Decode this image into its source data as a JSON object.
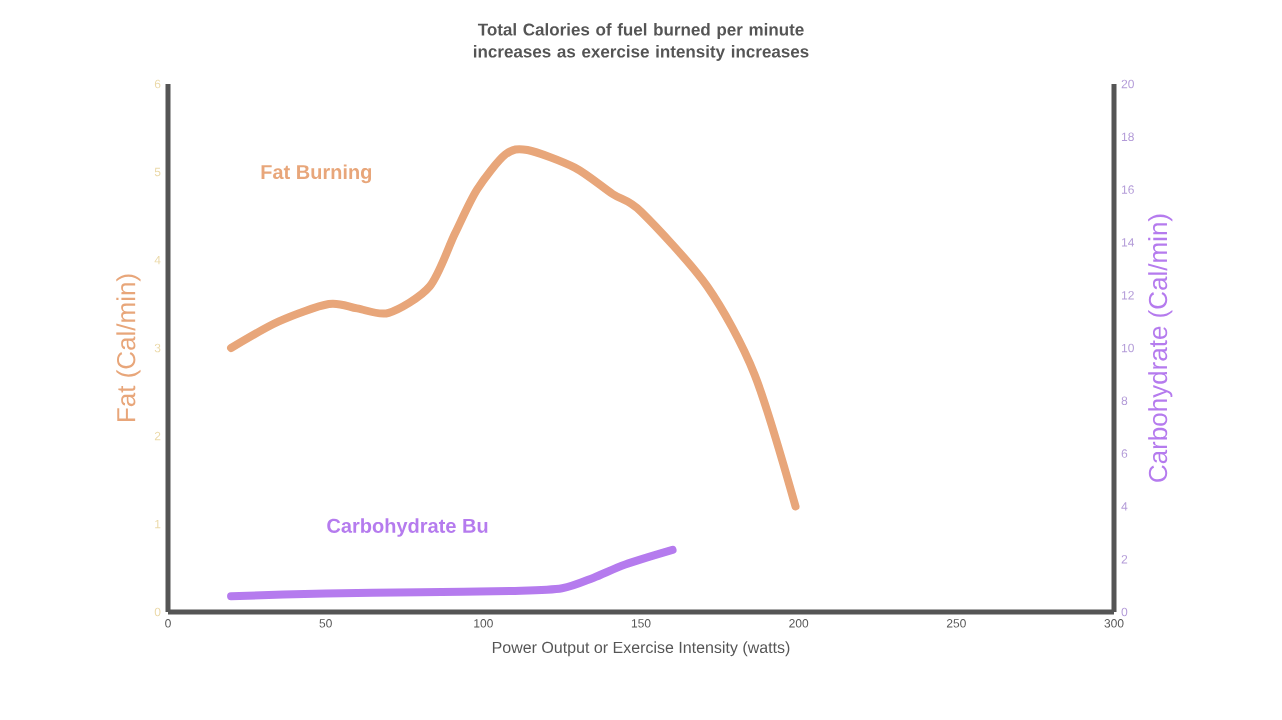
{
  "chart_data": {
    "type": "line",
    "title": "Total Calories of fuel burned per minute increases as exercise intensity increases",
    "xlabel": "Power Output or Exercise Intensity (watts)",
    "ylabel": "Fat (Cal/min)",
    "y2label": "Carbohydrate (Cal/min)",
    "xlim": [
      0,
      300
    ],
    "xticks": [
      0,
      50,
      100,
      150,
      200,
      250,
      300
    ],
    "ylim": [
      0,
      6
    ],
    "yticks": [
      0,
      1,
      2,
      3,
      4,
      5,
      6
    ],
    "y2lim": [
      0,
      20
    ],
    "y2ticks": [
      0,
      2,
      4,
      6,
      8,
      10,
      12,
      14,
      16,
      18,
      20
    ],
    "grid": false,
    "legend": false,
    "marker": "none",
    "line_style": "solid",
    "series": [
      {
        "name": "Fat Burning",
        "color": "#e8a67a",
        "x": [
          20,
          35,
          51,
          60,
          70,
          83,
          91,
          98,
          107,
          114,
          129,
          141,
          150,
          171,
          186,
          199
        ],
        "values": [
          3.0,
          3.3,
          3.5,
          3.45,
          3.4,
          3.7,
          4.3,
          4.8,
          5.2,
          5.25,
          5.05,
          4.75,
          4.55,
          3.7,
          2.7,
          1.2
        ]
      },
      {
        "name": "Carbohydrate Bu",
        "color": "#b57bee",
        "axis": "y2",
        "x": [
          20,
          50,
          80,
          110,
          125,
          135,
          145,
          160
        ],
        "values": [
          0.6,
          0.7,
          0.75,
          0.8,
          0.9,
          1.3,
          1.8,
          2.35
        ]
      }
    ]
  }
}
